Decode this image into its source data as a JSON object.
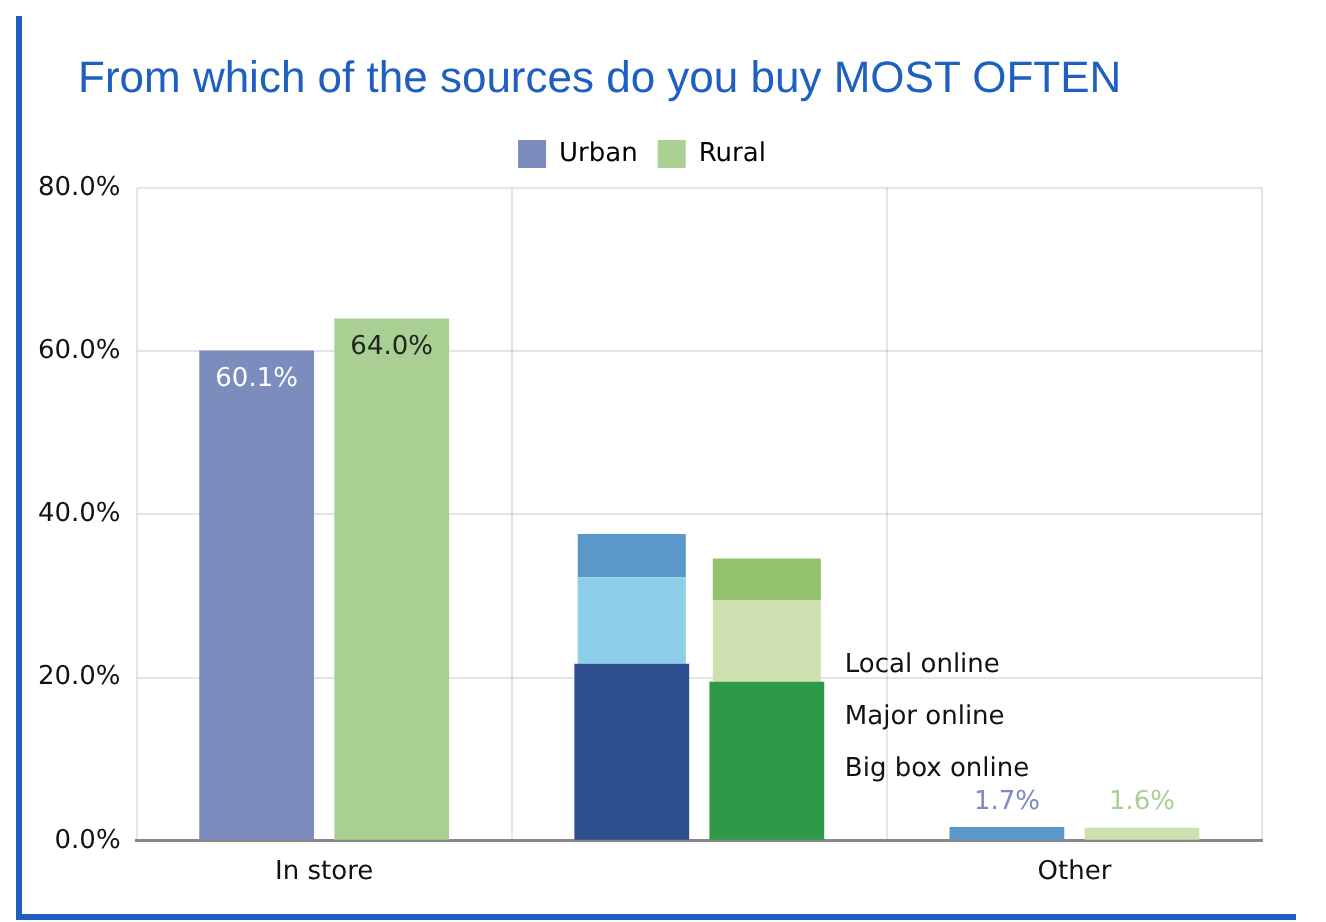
{
  "chart_data": {
    "type": "bar",
    "title": "From which of the sources do you buy MOST OFTEN",
    "categories": [
      "In store",
      null,
      "Other"
    ],
    "legend": "top",
    "grid": true,
    "ylim": [
      0,
      80
    ],
    "yticks": [
      {
        "value": 0,
        "label": "0.0%"
      },
      {
        "value": 20,
        "label": "20.0%"
      },
      {
        "value": 40,
        "label": "40.0%"
      },
      {
        "value": 60,
        "label": "60.0%"
      },
      {
        "value": 80,
        "label": "80.0%"
      }
    ],
    "series": [
      {
        "name": "Urban",
        "color": "#7b8cbd",
        "colors": [
          "#7b8cbd",
          "#2d4f8e",
          "#5b97c9"
        ],
        "values": [
          60.1,
          21.7,
          1.7
        ],
        "value_labels": [
          "60.1%",
          null,
          "1.7%"
        ]
      },
      {
        "color": "#8dcfe8",
        "base": [
          null,
          21.7,
          null
        ],
        "values": [
          null,
          10.6,
          null
        ]
      },
      {
        "color": "#5b97c9",
        "base": [
          null,
          32.3,
          null
        ],
        "values": [
          null,
          5.3,
          null
        ]
      },
      {
        "name": "Rural",
        "color": "#a9cf92",
        "colors": [
          "#a9cf92",
          "#2e9a48",
          "#cfe0b0"
        ],
        "values": [
          64.0,
          19.5,
          1.6
        ],
        "value_labels": [
          "64.0%",
          null,
          "1.6%"
        ]
      },
      {
        "color": "#cfe0b0",
        "base": [
          null,
          19.5,
          null
        ],
        "values": [
          null,
          10.0,
          null
        ]
      },
      {
        "color": "#93c26c",
        "base": [
          null,
          29.5,
          null
        ],
        "values": [
          null,
          5.1,
          null
        ]
      }
    ],
    "annotations": [
      "Local online",
      "Major online",
      "Big box online"
    ]
  }
}
